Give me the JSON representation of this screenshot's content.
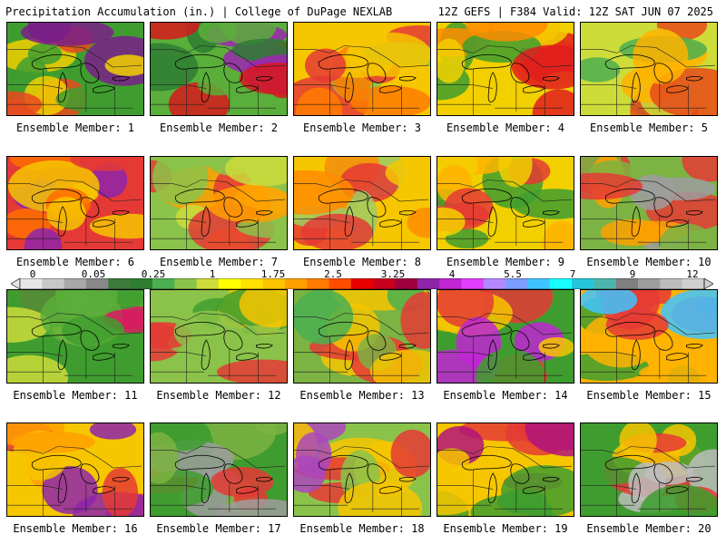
{
  "header": {
    "title": "Precipitation Accumulation (in.) | College of DuPage NEXLAB",
    "valid": "12Z GEFS | F384 Valid: 12Z SAT JUN 07 2025"
  },
  "panels": [
    {
      "label": "Ensemble Member: 1",
      "c": [
        "#3f9d2f",
        "#e94a1e",
        "#f2d000",
        "#7a1e8a"
      ]
    },
    {
      "label": "Ensemble Member: 2",
      "c": [
        "#5aae3a",
        "#d7191c",
        "#2e7d32",
        "#9c27b0"
      ]
    },
    {
      "label": "Ensemble Member: 3",
      "c": [
        "#f6c600",
        "#e53935",
        "#8bc34a",
        "#ff7b00"
      ]
    },
    {
      "label": "Ensemble Member: 4",
      "c": [
        "#f2d000",
        "#ff8c00",
        "#3f9d2f",
        "#e11d1d"
      ]
    },
    {
      "label": "Ensemble Member: 5",
      "c": [
        "#cddc39",
        "#ffb300",
        "#4caf50",
        "#e64a19"
      ]
    },
    {
      "label": "Ensemble Member: 6",
      "c": [
        "#e53935",
        "#f6c600",
        "#8e24aa",
        "#ff6f00"
      ]
    },
    {
      "label": "Ensemble Member: 7",
      "c": [
        "#8bc34a",
        "#ffa000",
        "#e53935",
        "#cddc39"
      ]
    },
    {
      "label": "Ensemble Member: 8",
      "c": [
        "#f6c600",
        "#ff8c00",
        "#9ccc65",
        "#e53935"
      ]
    },
    {
      "label": "Ensemble Member: 9",
      "c": [
        "#f2d000",
        "#3f9d2f",
        "#e53935",
        "#ffb300"
      ]
    },
    {
      "label": "Ensemble Member: 10",
      "c": [
        "#7cb342",
        "#e53935",
        "#9e9e9e",
        "#ffa000"
      ]
    },
    {
      "label": "Ensemble Member: 11",
      "c": [
        "#3f9d2f",
        "#5aae3a",
        "#cddc39",
        "#d81b60"
      ]
    },
    {
      "label": "Ensemble Member: 12",
      "c": [
        "#8bc34a",
        "#f6c600",
        "#3f9d2f",
        "#e53935"
      ]
    },
    {
      "label": "Ensemble Member: 13",
      "c": [
        "#7cb342",
        "#f6c600",
        "#4caf50",
        "#e53935"
      ]
    },
    {
      "label": "Ensemble Member: 14",
      "c": [
        "#3f9d2f",
        "#f6c600",
        "#e53935",
        "#c026d3"
      ]
    },
    {
      "label": "Ensemble Member: 15",
      "c": [
        "#ffb300",
        "#e53935",
        "#3f9d2f",
        "#40c4ff"
      ]
    },
    {
      "label": "Ensemble Member: 16",
      "c": [
        "#f6c600",
        "#ffa000",
        "#e53935",
        "#8e24aa"
      ]
    },
    {
      "label": "Ensemble Member: 17",
      "c": [
        "#3f9d2f",
        "#7cb342",
        "#9e9e9e",
        "#e53935"
      ]
    },
    {
      "label": "Ensemble Member: 18",
      "c": [
        "#8bc34a",
        "#f6c600",
        "#e53935",
        "#ab47bc"
      ]
    },
    {
      "label": "Ensemble Member: 19",
      "c": [
        "#f6c600",
        "#3f9d2f",
        "#e53935",
        "#b0157a"
      ]
    },
    {
      "label": "Ensemble Member: 20",
      "c": [
        "#3f9d2f",
        "#bdbdbd",
        "#e53935",
        "#f6c600"
      ]
    }
  ],
  "colorbar": {
    "colors": [
      "#e6e6e6",
      "#c8c8c8",
      "#a8a8a8",
      "#888888",
      "#3c7a3c",
      "#2e7d32",
      "#4caf50",
      "#8bc34a",
      "#cddc39",
      "#ffff00",
      "#ffe000",
      "#ffc400",
      "#ffa000",
      "#ff7b00",
      "#ff4d00",
      "#e60000",
      "#c8001e",
      "#a0003c",
      "#8e24aa",
      "#c026d3",
      "#e040fb",
      "#b388ff",
      "#7c9cff",
      "#40c4ff",
      "#18ffff",
      "#26c6da",
      "#4db6ac",
      "#7f7f7f",
      "#9e9e9e",
      "#bdbdbd",
      "#d0d0d0"
    ],
    "labels": [
      "0",
      "0.05",
      "0.25",
      "1",
      "1.75",
      "2.5",
      "3.25",
      "4",
      "5.5",
      "7",
      "9",
      "12"
    ]
  }
}
